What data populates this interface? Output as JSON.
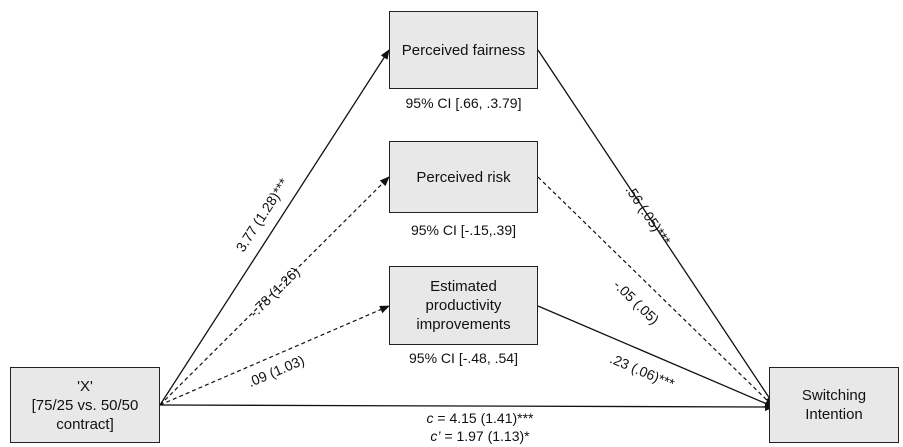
{
  "nodes": {
    "x": {
      "lines": [
        "'X'",
        "[75/25 vs. 50/50",
        "contract]"
      ]
    },
    "fairness": {
      "lines": [
        "Perceived fairness"
      ],
      "ci": "95% CI [.66, .3.79]"
    },
    "risk": {
      "lines": [
        "Perceived risk"
      ],
      "ci": "95% CI [-.15,.39]"
    },
    "productivity": {
      "lines": [
        "Estimated",
        "productivity",
        "improvements"
      ],
      "ci": "95% CI [-.48, .54]"
    },
    "switching": {
      "lines": [
        "Switching",
        "Intention"
      ]
    }
  },
  "paths": {
    "x_fairness": {
      "label": "3.77 (1.28)***",
      "style": "solid"
    },
    "x_risk": {
      "label": "-.78 (1.26)",
      "style": "dashed"
    },
    "x_productivity": {
      "label": ".09 (1.03)",
      "style": "dashed"
    },
    "fairness_switching": {
      "label": ".56 (.05)***",
      "style": "solid"
    },
    "risk_switching": {
      "label": "-.05 (.05)",
      "style": "dashed"
    },
    "productivity_switching": {
      "label": ".23 (.06)***",
      "style": "solid"
    },
    "x_switching": {
      "style": "solid"
    }
  },
  "effects": {
    "total": {
      "symbol": "c",
      "text": " = 4.15 (1.41)***"
    },
    "direct": {
      "symbol": "c’",
      "text": " = 1.97 (1.13)*"
    }
  }
}
